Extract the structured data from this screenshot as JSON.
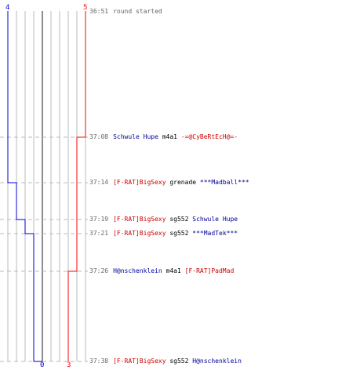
{
  "colors": {
    "red_team": "#ff0000",
    "blue_team": "#0000cc",
    "red_text": "#cc0000",
    "blue_text": "#000099",
    "grid": "#bbbbbb",
    "dash": "#bbbbbb",
    "time": "#666666"
  },
  "score": {
    "blue_start": "4",
    "red_start": "5",
    "blue_end": "0",
    "red_end": "3"
  },
  "events": [
    {
      "time": "36:51",
      "note": "round started"
    },
    {
      "time": "37:08",
      "killer": "Schwule Hupe",
      "killer_team": "blue",
      "weapon": "m4a1",
      "victim": "-=@CyBeRtEcH@=-",
      "victim_team": "red"
    },
    {
      "time": "37:14",
      "killer": "[F-RAT]BigSexy",
      "killer_team": "red",
      "weapon": "grenade",
      "victim": "***Madball***",
      "victim_team": "blue"
    },
    {
      "time": "37:19",
      "killer": "[F-RAT]BigSexy",
      "killer_team": "red",
      "weapon": "sg552",
      "victim": "Schwule Hupe",
      "victim_team": "blue"
    },
    {
      "time": "37:21",
      "killer": "[F-RAT]BigSexy",
      "killer_team": "red",
      "weapon": "sg552",
      "victim": "***MadTek***",
      "victim_team": "blue"
    },
    {
      "time": "37:26",
      "killer": "H@nschenklein",
      "killer_team": "blue",
      "weapon": "m4a1",
      "victim": "[F-RAT]PadMad",
      "victim_team": "red"
    },
    {
      "time": "37:38",
      "killer": "[F-RAT]BigSexy",
      "killer_team": "red",
      "weapon": "sg552",
      "victim": "H@nschenklein",
      "victim_team": "blue"
    }
  ]
}
